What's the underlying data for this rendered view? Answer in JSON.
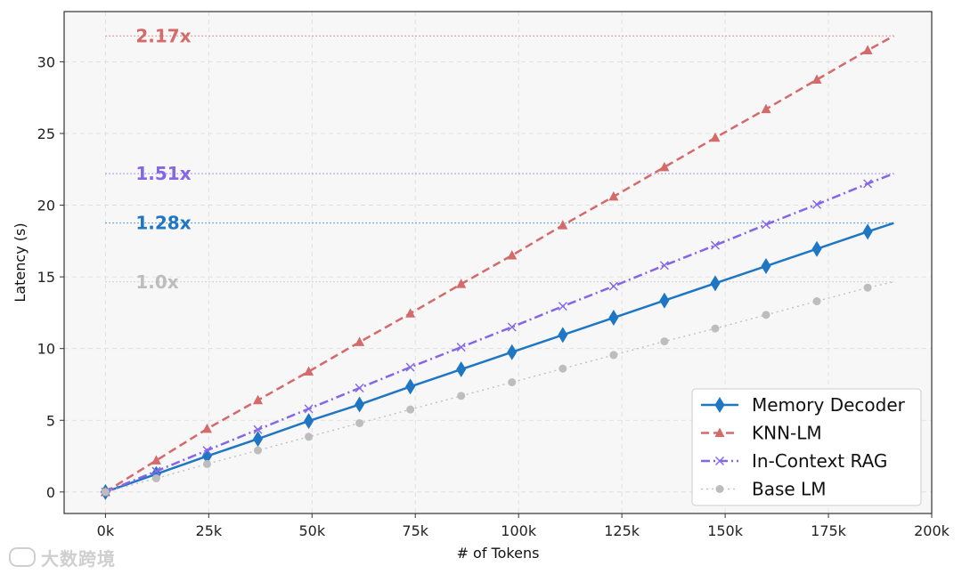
{
  "chart_data": {
    "type": "line",
    "title": "",
    "xlabel": "# of Tokens",
    "ylabel": "Latency (s)",
    "xlim": [
      -10000,
      200000
    ],
    "ylim": [
      -1.5,
      33.5
    ],
    "x_ticks": [
      0,
      25000,
      50000,
      75000,
      100000,
      125000,
      150000,
      175000,
      200000
    ],
    "x_tick_labels": [
      "0k",
      "25k",
      "50k",
      "75k",
      "100k",
      "125k",
      "150k",
      "175k",
      "200k"
    ],
    "y_ticks": [
      0,
      5,
      10,
      15,
      20,
      25,
      30
    ],
    "y_tick_labels": [
      "0",
      "5",
      "10",
      "15",
      "20",
      "25",
      "30"
    ],
    "grid": true,
    "legend_position": "bottom-right",
    "x": [
      0,
      12300,
      24600,
      36900,
      49200,
      61500,
      73800,
      86100,
      98400,
      110700,
      123000,
      135300,
      147600,
      159900,
      172200,
      184500,
      190800
    ],
    "series": [
      {
        "name": "Memory Decoder",
        "color": "#1f77c4",
        "line_style": "solid",
        "marker": "diamond",
        "values": [
          0.0,
          1.25,
          2.5,
          3.7,
          4.95,
          6.1,
          7.35,
          8.55,
          9.75,
          10.95,
          12.15,
          13.35,
          14.55,
          15.75,
          16.95,
          18.15,
          18.75
        ]
      },
      {
        "name": "KNN-LM",
        "color": "#d46a6a",
        "line_style": "dashed",
        "marker": "triangle",
        "values": [
          0.0,
          2.2,
          4.4,
          6.4,
          8.4,
          10.45,
          12.45,
          14.5,
          16.5,
          18.6,
          20.6,
          22.65,
          24.7,
          26.7,
          28.75,
          30.8,
          31.8
        ]
      },
      {
        "name": "In-Context RAG",
        "color": "#8566e6",
        "line_style": "dashdot",
        "marker": "x",
        "values": [
          0.0,
          1.45,
          2.9,
          4.35,
          5.8,
          7.25,
          8.7,
          10.1,
          11.5,
          12.95,
          14.35,
          15.8,
          17.2,
          18.65,
          20.05,
          21.5,
          22.2
        ]
      },
      {
        "name": "Base LM",
        "color": "#bdbdbd",
        "line_style": "dotted",
        "marker": "circle",
        "values": [
          0.0,
          0.95,
          1.95,
          2.9,
          3.85,
          4.8,
          5.75,
          6.7,
          7.65,
          8.6,
          9.55,
          10.5,
          11.4,
          12.35,
          13.3,
          14.25,
          14.65
        ]
      }
    ],
    "ratio_annotations": [
      {
        "label": "2.17x",
        "y": 31.8,
        "color": "#d46a6a"
      },
      {
        "label": "1.51x",
        "y": 22.2,
        "color": "#8566e6"
      },
      {
        "label": "1.28x",
        "y": 18.75,
        "color": "#1f77c4"
      },
      {
        "label": "1.0x",
        "y": 14.65,
        "color": "#bdbdbd"
      }
    ]
  },
  "watermark": {
    "text": "大数跨境"
  }
}
